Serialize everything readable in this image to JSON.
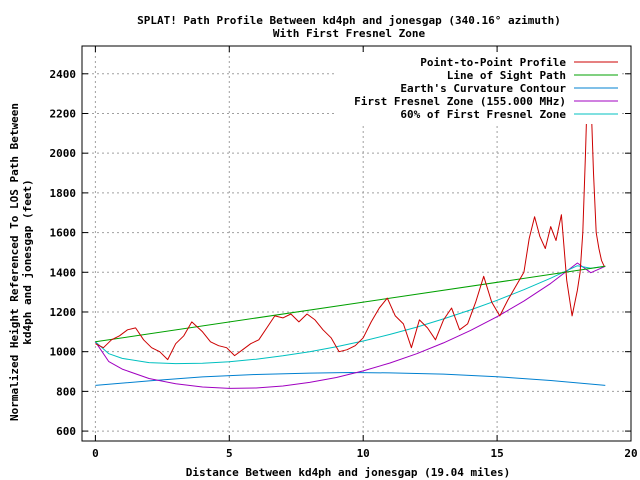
{
  "chart_data": {
    "type": "line",
    "title_line1": "SPLAT! Path Profile Between kd4ph and jonesgap (340.16° azimuth)",
    "title_line2": "With First Fresnel Zone",
    "xlabel": "Distance Between kd4ph and jonesgap (19.04 miles)",
    "ylabel_line1": "Normalized Height Referenced To LOS Path Between",
    "ylabel_line2": "kd4ph and jonesgap (feet)",
    "xlim": [
      -0.5,
      20
    ],
    "ylim": [
      550,
      2540
    ],
    "x_ticks": [
      0,
      5,
      10,
      15,
      20
    ],
    "y_ticks": [
      600,
      800,
      1000,
      1200,
      1400,
      1600,
      1800,
      2000,
      2200,
      2400
    ],
    "grid": true,
    "legend_position": "top-right",
    "series": [
      {
        "name": "Point-to-Point Profile",
        "color": "#cc0000",
        "x": [
          0,
          0.3,
          0.6,
          0.9,
          1.2,
          1.5,
          1.8,
          2.1,
          2.4,
          2.7,
          3.0,
          3.3,
          3.6,
          4.0,
          4.3,
          4.6,
          4.9,
          5.2,
          5.5,
          5.8,
          6.1,
          6.4,
          6.7,
          7.0,
          7.3,
          7.6,
          7.9,
          8.2,
          8.5,
          8.8,
          9.1,
          9.4,
          9.7,
          10.0,
          10.3,
          10.6,
          10.9,
          11.2,
          11.5,
          11.8,
          12.1,
          12.4,
          12.7,
          13.0,
          13.3,
          13.6,
          13.9,
          14.2,
          14.5,
          14.8,
          15.1,
          15.4,
          15.7,
          16.0,
          16.2,
          16.4,
          16.6,
          16.8,
          17.0,
          17.2,
          17.4,
          17.6,
          17.8,
          18.0,
          18.1,
          18.2,
          18.3,
          18.4,
          18.5,
          18.6,
          18.7,
          18.8,
          18.9,
          19.0
        ],
        "values": [
          1040,
          1020,
          1060,
          1080,
          1110,
          1120,
          1060,
          1020,
          1000,
          960,
          1040,
          1080,
          1150,
          1100,
          1050,
          1030,
          1020,
          980,
          1010,
          1040,
          1060,
          1120,
          1180,
          1170,
          1190,
          1150,
          1190,
          1160,
          1110,
          1070,
          1000,
          1010,
          1030,
          1070,
          1150,
          1220,
          1270,
          1180,
          1140,
          1020,
          1160,
          1120,
          1060,
          1160,
          1220,
          1110,
          1140,
          1250,
          1380,
          1250,
          1180,
          1260,
          1330,
          1400,
          1570,
          1680,
          1580,
          1520,
          1630,
          1560,
          1690,
          1360,
          1180,
          1310,
          1400,
          1600,
          2000,
          2460,
          2300,
          1900,
          1600,
          1520,
          1460,
          1430
        ]
      },
      {
        "name": "Line of Sight Path",
        "color": "#00a000",
        "x": [
          0,
          19.04
        ],
        "values": [
          1050,
          1430
        ]
      },
      {
        "name": "Earth's Curvature Contour",
        "color": "#0080d0",
        "x": [
          0,
          2,
          4,
          6,
          8,
          9.52,
          11,
          13,
          15,
          17,
          19.04
        ],
        "values": [
          830,
          853,
          873,
          885,
          892,
          895,
          893,
          887,
          874,
          855,
          830
        ]
      },
      {
        "name": "First Fresnel Zone (155.000 MHz)",
        "color": "#a000c0",
        "x": [
          0,
          0.5,
          1,
          2,
          3,
          4,
          5,
          6,
          7,
          8,
          9,
          10,
          11,
          12,
          13,
          14,
          15,
          16,
          17,
          18,
          18.5,
          19.04
        ],
        "values": [
          1050,
          950,
          912,
          865,
          838,
          822,
          815,
          817,
          827,
          845,
          870,
          903,
          943,
          990,
          1044,
          1106,
          1176,
          1255,
          1344,
          1447,
          1398,
          1430
        ]
      },
      {
        "name": "60% of First Fresnel Zone",
        "color": "#00c0c0",
        "x": [
          0,
          0.5,
          1,
          2,
          3,
          4,
          5,
          6,
          7,
          8,
          9,
          10,
          11,
          12,
          13,
          14,
          15,
          16,
          17,
          18,
          18.5,
          19.04
        ],
        "values": [
          1050,
          990,
          966,
          945,
          940,
          942,
          949,
          962,
          979,
          1000,
          1025,
          1054,
          1087,
          1124,
          1165,
          1210,
          1259,
          1312,
          1370,
          1433,
          1420,
          1430
        ]
      }
    ]
  }
}
